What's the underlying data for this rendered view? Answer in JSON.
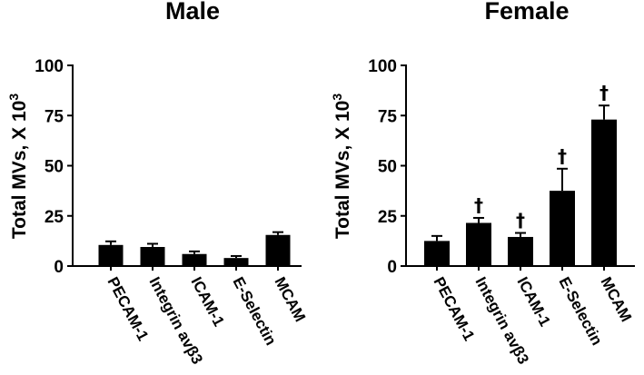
{
  "chart_data": [
    {
      "type": "bar",
      "title": "Male",
      "ylabel": "Total MVs, X 10",
      "ylabel_sup": "3",
      "ylim": [
        0,
        100
      ],
      "yticks": [
        "0",
        "25",
        "50",
        "75",
        "100"
      ],
      "categories": [
        "PECAM-1",
        "Integrin avβ3",
        "ICAM-1",
        "E-Selectin",
        "MCAM"
      ],
      "values": [
        10.5,
        9.5,
        6,
        4,
        15.5
      ],
      "errors": [
        1.8,
        1.6,
        1.3,
        1.0,
        1.4
      ],
      "annotations": [
        "",
        "",
        "",
        "",
        ""
      ],
      "grid": false,
      "bar_color": "#000000"
    },
    {
      "type": "bar",
      "title": "Female",
      "ylabel": "Total MVs, X 10",
      "ylabel_sup": "3",
      "ylim": [
        0,
        100
      ],
      "yticks": [
        "0",
        "25",
        "50",
        "75",
        "100"
      ],
      "categories": [
        "PECAM-1",
        "Integrin avβ3",
        "ICAM-1",
        "E-Selectin",
        "MCAM"
      ],
      "values": [
        12.5,
        21.5,
        14.5,
        37.5,
        73
      ],
      "errors": [
        2.5,
        2.5,
        2.0,
        11,
        7
      ],
      "annotations": [
        "",
        "†",
        "†",
        "†",
        "†"
      ],
      "grid": false,
      "bar_color": "#000000"
    }
  ]
}
